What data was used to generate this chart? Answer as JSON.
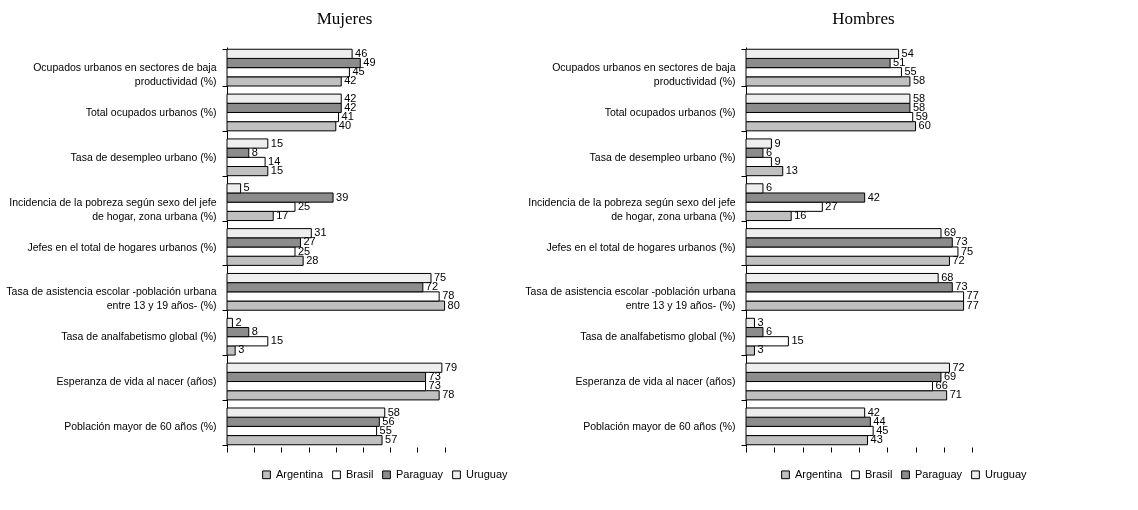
{
  "chart_data": [
    {
      "type": "bar",
      "orientation": "horizontal",
      "title": "Mujeres",
      "categories": [
        "Ocupados urbanos en sectores de baja productividad (%)",
        "Total ocupados urbanos (%)",
        "Tasa de desempleo urbano (%)",
        "Incidencia de la pobreza según sexo del jefe de hogar, zona urbana (%)",
        "Jefes en el  total de hogares urbanos (%)",
        "Tasa de asistencia escolar -población urbana entre 13 y 19 años- (%)",
        "Tasa de analfabetismo global (%)",
        "Esperanza de vida al nacer (años)",
        "Población mayor de 60 años (%)"
      ],
      "series": [
        {
          "name": "Argentina",
          "color": "#c0c0c0",
          "values": [
            42,
            40,
            15,
            17,
            28,
            80,
            3,
            78,
            57
          ]
        },
        {
          "name": "Brasil",
          "color": "#ffffff",
          "values": [
            45,
            41,
            14,
            25,
            25,
            78,
            15,
            73,
            55
          ]
        },
        {
          "name": "Paraguay",
          "color": "#8c8c8c",
          "values": [
            49,
            42,
            8,
            39,
            27,
            72,
            8,
            73,
            56
          ]
        },
        {
          "name": "Uruguay",
          "color": "#eeeeee",
          "values": [
            46,
            42,
            15,
            5,
            31,
            75,
            2,
            79,
            58
          ]
        }
      ],
      "tick_labels": "y",
      "data_labels": true,
      "legend": "bottom right",
      "grid": false
    },
    {
      "type": "bar",
      "orientation": "horizontal",
      "title": "Hombres",
      "categories": [
        "Ocupados urbanos en sectores de baja productividad (%)",
        "Total ocupados urbanos (%)",
        "Tasa de desempleo urbano (%)",
        "Incidencia de la pobreza según sexo del jefe de hogar, zona urbana (%)",
        "Jefes en el  total de hogares urbanos (%)",
        "Tasa de asistencia escolar -población urbana entre 13 y 19 años- (%)",
        "Tasa de analfabetismo global (%)",
        "Esperanza de vida al nacer (años)",
        "Población mayor de 60 años (%)"
      ],
      "series": [
        {
          "name": "Argentina",
          "color": "#c0c0c0",
          "values": [
            58,
            60,
            13,
            16,
            72,
            77,
            3,
            71,
            43
          ]
        },
        {
          "name": "Brasil",
          "color": "#ffffff",
          "values": [
            55,
            59,
            9,
            27,
            75,
            77,
            15,
            66,
            45
          ]
        },
        {
          "name": "Paraguay",
          "color": "#8c8c8c",
          "values": [
            51,
            58,
            6,
            42,
            73,
            73,
            6,
            69,
            44
          ]
        },
        {
          "name": "Uruguay",
          "color": "#eeeeee",
          "values": [
            54,
            58,
            9,
            6,
            69,
            68,
            3,
            72,
            42
          ]
        }
      ],
      "tick_labels": "y",
      "data_labels": true,
      "legend": "bottom right",
      "grid": false
    }
  ]
}
